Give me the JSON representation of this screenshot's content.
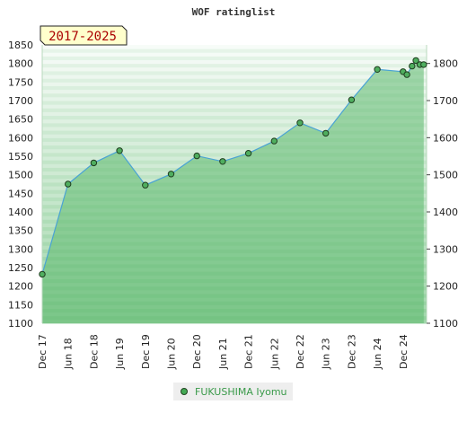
{
  "colors": {
    "area_fill": "#5fba6f",
    "line": "#4aa3d4",
    "marker": "#4fae5f",
    "marker_stroke": "#1f3d1f",
    "band_light": "#ffffff",
    "band_dark": "#5fba6f",
    "period_box": "#ffffcc",
    "period_text": "#aa0000"
  },
  "chart_data": {
    "type": "area",
    "title": "WOF ratinglist",
    "period_label": "2017-2025",
    "ylim": [
      1100,
      1850
    ],
    "y_ticks": [
      1100,
      1150,
      1200,
      1250,
      1300,
      1350,
      1400,
      1450,
      1500,
      1550,
      1600,
      1650,
      1700,
      1750,
      1800,
      1850
    ],
    "right_y_ticks": [
      1100,
      1200,
      1300,
      1400,
      1500,
      1600,
      1700,
      1800
    ],
    "x_tick_labels": [
      "Dec 17",
      "Jun 18",
      "Dec 18",
      "Jun 19",
      "Dec 19",
      "Jun 20",
      "Dec 20",
      "Jun 21",
      "Dec 21",
      "Jun 22",
      "Dec 22",
      "Jun 23",
      "Dec 23",
      "Jun 24",
      "Dec 24"
    ],
    "grid": "horizontal bands",
    "series": [
      {
        "name": "FUKUSHIMA Iyomu",
        "x": [
          0,
          1,
          2,
          3,
          4,
          5,
          6,
          7,
          8,
          9,
          10,
          11,
          12,
          13,
          14.0,
          14.15,
          14.35,
          14.5,
          14.65,
          14.8
        ],
        "values": [
          1232,
          1475,
          1532,
          1565,
          1472,
          1502,
          1551,
          1536,
          1558,
          1591,
          1640,
          1612,
          1702,
          1784,
          1778,
          1770,
          1793,
          1808,
          1797,
          1797
        ]
      }
    ]
  }
}
